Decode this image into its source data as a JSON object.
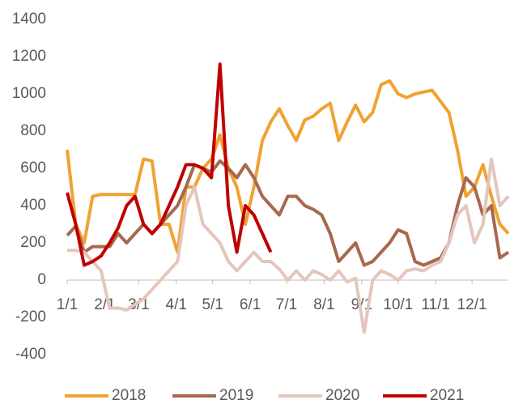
{
  "chart_data": {
    "type": "line",
    "x": [
      0,
      7,
      14,
      21,
      28,
      35,
      42,
      49,
      56,
      63,
      70,
      77,
      84,
      91,
      98,
      105,
      112,
      119,
      126,
      133,
      140,
      147,
      154,
      161,
      168,
      175,
      182,
      189,
      196,
      203,
      210,
      217,
      224,
      231,
      238,
      245,
      252,
      259,
      266,
      273,
      280,
      287,
      294,
      301,
      308,
      315,
      322,
      329,
      336,
      343,
      350,
      357,
      364
    ],
    "xlim": [
      0,
      364
    ],
    "xticks": [
      {
        "value": 0,
        "label": "1/1"
      },
      {
        "value": 31,
        "label": "2/1"
      },
      {
        "value": 59,
        "label": "3/1"
      },
      {
        "value": 90,
        "label": "4/1"
      },
      {
        "value": 120,
        "label": "5/1"
      },
      {
        "value": 151,
        "label": "6/1"
      },
      {
        "value": 181,
        "label": "7/1"
      },
      {
        "value": 212,
        "label": "8/1"
      },
      {
        "value": 243,
        "label": "9/1"
      },
      {
        "value": 273,
        "label": "10/1"
      },
      {
        "value": 304,
        "label": "11/1"
      },
      {
        "value": 334,
        "label": "12/1"
      }
    ],
    "ylim": [
      -400,
      1400
    ],
    "yticks": [
      -400,
      -200,
      0,
      200,
      400,
      600,
      800,
      1000,
      1200,
      1400
    ],
    "grid": false,
    "legend": "bottom",
    "series": [
      {
        "name": "2018",
        "color": "#f0a232",
        "values": [
          700,
          300,
          200,
          450,
          460,
          460,
          460,
          460,
          460,
          650,
          640,
          300,
          300,
          150,
          500,
          500,
          600,
          650,
          780,
          600,
          500,
          300,
          500,
          750,
          850,
          920,
          830,
          750,
          860,
          880,
          920,
          950,
          750,
          850,
          940,
          850,
          900,
          1050,
          1070,
          1000,
          980,
          1000,
          1010,
          1020,
          960,
          900,
          700,
          450,
          500,
          620,
          450,
          300,
          250
        ]
      },
      {
        "name": "2019",
        "color": "#a8684e",
        "values": [
          240,
          290,
          150,
          180,
          180,
          180,
          250,
          200,
          250,
          300,
          250,
          300,
          350,
          400,
          500,
          620,
          600,
          580,
          640,
          600,
          550,
          620,
          550,
          450,
          400,
          350,
          450,
          450,
          400,
          380,
          350,
          250,
          100,
          150,
          200,
          80,
          100,
          150,
          200,
          270,
          250,
          100,
          80,
          100,
          120,
          200,
          400,
          550,
          500,
          350,
          400,
          120,
          150
        ]
      },
      {
        "name": "2020",
        "color": "#e4c6bc",
        "values": [
          160,
          160,
          150,
          100,
          50,
          -150,
          -150,
          -160,
          -130,
          -100,
          -50,
          0,
          50,
          100,
          400,
          500,
          300,
          250,
          200,
          100,
          50,
          100,
          150,
          100,
          100,
          60,
          0,
          50,
          0,
          50,
          30,
          0,
          50,
          -10,
          10,
          -280,
          0,
          50,
          30,
          0,
          50,
          60,
          50,
          80,
          100,
          200,
          350,
          400,
          200,
          300,
          650,
          400,
          450
        ]
      },
      {
        "name": "2021",
        "color": "#c00000",
        "values": [
          470,
          300,
          80,
          100,
          130,
          200,
          280,
          400,
          450,
          300,
          250,
          300,
          400,
          500,
          620,
          620,
          600,
          550,
          1160,
          400,
          150,
          400,
          350,
          250,
          150,
          null,
          null,
          null,
          null,
          null,
          null,
          null,
          null,
          null,
          null,
          null,
          null,
          null,
          null,
          null,
          null,
          null,
          null,
          null,
          null,
          null,
          null,
          null,
          null,
          null,
          null,
          null,
          null
        ]
      }
    ]
  }
}
